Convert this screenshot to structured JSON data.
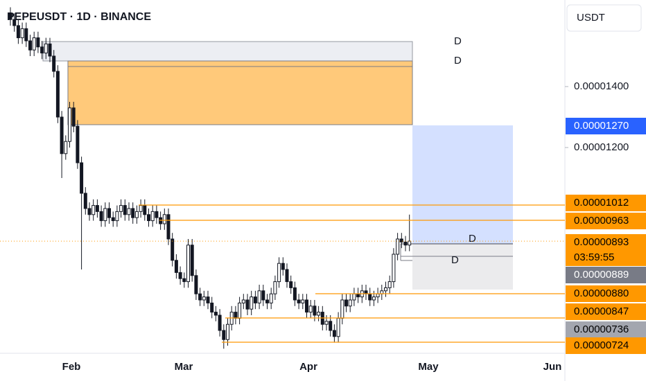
{
  "header": {
    "title": "PEPEUSDT · 1D · BINANCE",
    "currency": "USDT"
  },
  "chart_data": {
    "type": "candlestick",
    "open": [
      1.64e-05,
      1.62e-05,
      1.6e-05,
      1.56e-05,
      1.59e-05,
      1.55e-05,
      1.52e-05,
      1.56e-05,
      1.53e-05,
      1.51e-05,
      1.54e-05,
      1.5e-05,
      1.45e-05,
      1.3e-05,
      1.18e-05,
      1.22e-05,
      1.33e-05,
      1.27e-05,
      1.15e-05,
      1.05e-05,
      1e-05,
      9.8e-06,
      1.01e-05,
      9.9e-06,
      9.6e-06,
      1e-05,
      9.7e-06,
      9.6e-06,
      9.9e-06,
      1.01e-05,
      9.8e-06,
      1e-05,
      9.7e-06,
      9.9e-06,
      1.01e-05,
      9.8e-06,
      9.6e-06,
      9.9e-06,
      9.7e-06,
      9.5e-06,
      9.8e-06,
      9e-06,
      8.3e-06,
      7.9e-06,
      7.7e-06,
      7.6e-06,
      8.8e-06,
      7.8e-06,
      7.2e-06,
      7e-06,
      7.1e-06,
      6.9e-06,
      6.6e-06,
      6.5e-06,
      6e-06,
      5.7e-06,
      6.2e-06,
      6.6e-06,
      6.4e-06,
      6.9e-06,
      7e-06,
      6.7e-06,
      7.1e-06,
      6.9e-06,
      7.3e-06,
      7e-06,
      6.9e-06,
      7.2e-06,
      7.6e-06,
      8.2e-06,
      8e-06,
      7.6e-06,
      7.4e-06,
      7e-06,
      6.9e-06,
      7e-06,
      6.6e-06,
      6.8e-06,
      6.5e-06,
      6.6e-06,
      6.2e-06,
      6.3e-06,
      6e-06,
      5.8e-06,
      6.4e-06,
      7e-06,
      6.8e-06,
      7e-06,
      7.2e-06,
      7.1e-06,
      7.3e-06,
      7.2e-06,
      7e-06,
      7.1e-06,
      7.2e-06,
      7.3e-06,
      7.4e-06,
      7.6e-06,
      8.5e-06,
      9e-06,
      8.9e-06,
      8.8e-06
    ],
    "high": [
      1.66e-05,
      1.64e-05,
      1.62e-05,
      1.61e-05,
      1.61e-05,
      1.57e-05,
      1.58e-05,
      1.58e-05,
      1.55e-05,
      1.56e-05,
      1.56e-05,
      1.52e-05,
      1.47e-05,
      1.32e-05,
      1.24e-05,
      1.35e-05,
      1.35e-05,
      1.29e-05,
      1.17e-05,
      1.07e-05,
      1.02e-05,
      1.03e-05,
      1.03e-05,
      1.01e-05,
      1.02e-05,
      1.02e-05,
      9.9e-06,
      1.01e-05,
      1.03e-05,
      1.03e-05,
      1.02e-05,
      1.02e-05,
      1.01e-05,
      1.03e-05,
      1.03e-05,
      1e-05,
      1.01e-05,
      1.01e-05,
      9.9e-06,
      1e-05,
      1e-05,
      9.2e-06,
      8.5e-06,
      8.1e-06,
      7.9e-06,
      9e-06,
      9e-06,
      8e-06,
      7.4e-06,
      7.3e-06,
      7.3e-06,
      7.1e-06,
      6.8e-06,
      6.7e-06,
      6.2e-06,
      6.4e-06,
      6.8e-06,
      6.8e-06,
      7.1e-06,
      7.2e-06,
      7.2e-06,
      7.3e-06,
      7.3e-06,
      7.5e-06,
      7.5e-06,
      7.2e-06,
      7.4e-06,
      7.8e-06,
      8.4e-06,
      8.4e-06,
      8.2e-06,
      7.8e-06,
      7.6e-06,
      7.2e-06,
      7.2e-06,
      7.2e-06,
      7e-06,
      7e-06,
      6.8e-06,
      6.8e-06,
      6.5e-06,
      6.5e-06,
      6.2e-06,
      6.6e-06,
      7.2e-06,
      7.2e-06,
      7.2e-06,
      7.4e-06,
      7.4e-06,
      7.5e-06,
      7.5e-06,
      7.4e-06,
      7.3e-06,
      7.4e-06,
      7.5e-06,
      7.6e-06,
      7.8e-06,
      8.7e-06,
      9.2e-06,
      9.2e-06,
      9.1e-06,
      9.8e-06
    ],
    "low": [
      1.6e-05,
      1.58e-05,
      1.54e-05,
      1.54e-05,
      1.53e-05,
      1.5e-05,
      1.5e-05,
      1.51e-05,
      1.49e-05,
      1.49e-05,
      1.48e-05,
      1.43e-05,
      1.28e-05,
      1.1e-05,
      1.16e-05,
      1.2e-05,
      1.25e-05,
      1.13e-05,
      8e-06,
      9.8e-06,
      9.6e-06,
      9.6e-06,
      9.7e-06,
      9.4e-06,
      9.4e-06,
      9.5e-06,
      9.4e-06,
      9.4e-06,
      9.7e-06,
      9.6e-06,
      9.6e-06,
      9.5e-06,
      9.5e-06,
      9.7e-06,
      9.6e-06,
      9.4e-06,
      9.4e-06,
      9.5e-06,
      9.3e-06,
      9.3e-06,
      8.8e-06,
      8.1e-06,
      7.7e-06,
      7.5e-06,
      7.4e-06,
      7.4e-06,
      7.6e-06,
      7e-06,
      6.8e-06,
      6.8e-06,
      6.7e-06,
      6.4e-06,
      6.3e-06,
      5.8e-06,
      5.4e-06,
      5.5e-06,
      6e-06,
      6.2e-06,
      6.2e-06,
      6.7e-06,
      6.5e-06,
      6.5e-06,
      6.7e-06,
      6.7e-06,
      6.8e-06,
      6.7e-06,
      6.7e-06,
      7e-06,
      7.4e-06,
      7.8e-06,
      7.4e-06,
      7.2e-06,
      6.8e-06,
      6.7e-06,
      6.7e-06,
      6.4e-06,
      6.4e-06,
      6.3e-06,
      6.3e-06,
      6e-06,
      6e-06,
      5.8e-06,
      5.6e-06,
      5.6e-06,
      6.2e-06,
      6.6e-06,
      6.6e-06,
      6.8e-06,
      6.9e-06,
      6.9e-06,
      7e-06,
      6.8e-06,
      6.8e-06,
      6.9e-06,
      7e-06,
      7.1e-06,
      7.2e-06,
      7.4e-06,
      8.3e-06,
      8.7e-06,
      8.6e-06,
      8.6e-06
    ],
    "close": [
      1.62e-05,
      1.6e-05,
      1.56e-05,
      1.59e-05,
      1.55e-05,
      1.52e-05,
      1.56e-05,
      1.53e-05,
      1.51e-05,
      1.54e-05,
      1.5e-05,
      1.45e-05,
      1.3e-05,
      1.18e-05,
      1.22e-05,
      1.33e-05,
      1.27e-05,
      1.15e-05,
      1.05e-05,
      1e-05,
      9.8e-06,
      1.01e-05,
      9.9e-06,
      9.6e-06,
      1e-05,
      9.7e-06,
      9.6e-06,
      9.9e-06,
      1.01e-05,
      9.8e-06,
      1e-05,
      9.7e-06,
      9.9e-06,
      1.01e-05,
      9.8e-06,
      9.6e-06,
      9.9e-06,
      9.7e-06,
      9.5e-06,
      9.8e-06,
      9e-06,
      8.3e-06,
      7.9e-06,
      7.7e-06,
      7.6e-06,
      8.8e-06,
      7.8e-06,
      7.2e-06,
      7e-06,
      7.1e-06,
      6.9e-06,
      6.6e-06,
      6.5e-06,
      6e-06,
      5.7e-06,
      6.2e-06,
      6.6e-06,
      6.4e-06,
      6.9e-06,
      7e-06,
      6.7e-06,
      7.1e-06,
      6.9e-06,
      7.3e-06,
      7e-06,
      6.9e-06,
      7.2e-06,
      7.6e-06,
      8.2e-06,
      8e-06,
      7.6e-06,
      7.4e-06,
      7e-06,
      6.9e-06,
      7e-06,
      6.6e-06,
      6.8e-06,
      6.5e-06,
      6.6e-06,
      6.2e-06,
      6.3e-06,
      6e-06,
      5.8e-06,
      6.4e-06,
      7e-06,
      6.8e-06,
      7e-06,
      7.2e-06,
      7.1e-06,
      7.3e-06,
      7.2e-06,
      7e-06,
      7.1e-06,
      7.2e-06,
      7.3e-06,
      7.4e-06,
      7.6e-06,
      8.5e-06,
      9e-06,
      8.9e-06,
      8.8e-06,
      8.93e-06
    ],
    "up_color": "#ffffff",
    "down_color": "#131722",
    "ylim": [
      5.25e-06,
      1.684e-05
    ],
    "yticks": [
      {
        "value": 1.4e-05,
        "label": "0.00001400"
      },
      {
        "value": 1.2e-05,
        "label": "0.00001200"
      }
    ],
    "xticks": [
      "Feb",
      "Mar",
      "Apr",
      "May",
      "Jun"
    ],
    "price_tags": [
      {
        "value": 1.27e-05,
        "label": "0.00001270",
        "color": "#2962ff",
        "text_color": "#ffffff"
      },
      {
        "value": 1.012e-05,
        "label": "0.00001012",
        "color": "#ff9800",
        "text_color": "#000000"
      },
      {
        "value": 9.63e-06,
        "label": "0.00000963",
        "color": "#ff9800",
        "text_color": "#000000"
      },
      {
        "value": 8.93e-06,
        "label": "0.00000893",
        "color": "#ff9800",
        "text_color": "#000000",
        "countdown": "03:59:55"
      },
      {
        "value": 8.89e-06,
        "label": "0.00000889",
        "color": "#787b86",
        "text_color": "#ffffff"
      },
      {
        "value": 8.8e-06,
        "label": "0.00000880",
        "color": "#ff9800",
        "text_color": "#000000"
      },
      {
        "value": 8.47e-06,
        "label": "0.00000847",
        "color": "#ff9800",
        "text_color": "#000000"
      },
      {
        "value": 7.36e-06,
        "label": "0.00000736",
        "color": "#a3a6af",
        "text_color": "#000000"
      },
      {
        "value": 7.24e-06,
        "label": "0.00000724",
        "color": "#ff9800",
        "text_color": "#000000"
      }
    ],
    "drawing_labels": [
      "D",
      "D",
      "D",
      "D"
    ]
  }
}
